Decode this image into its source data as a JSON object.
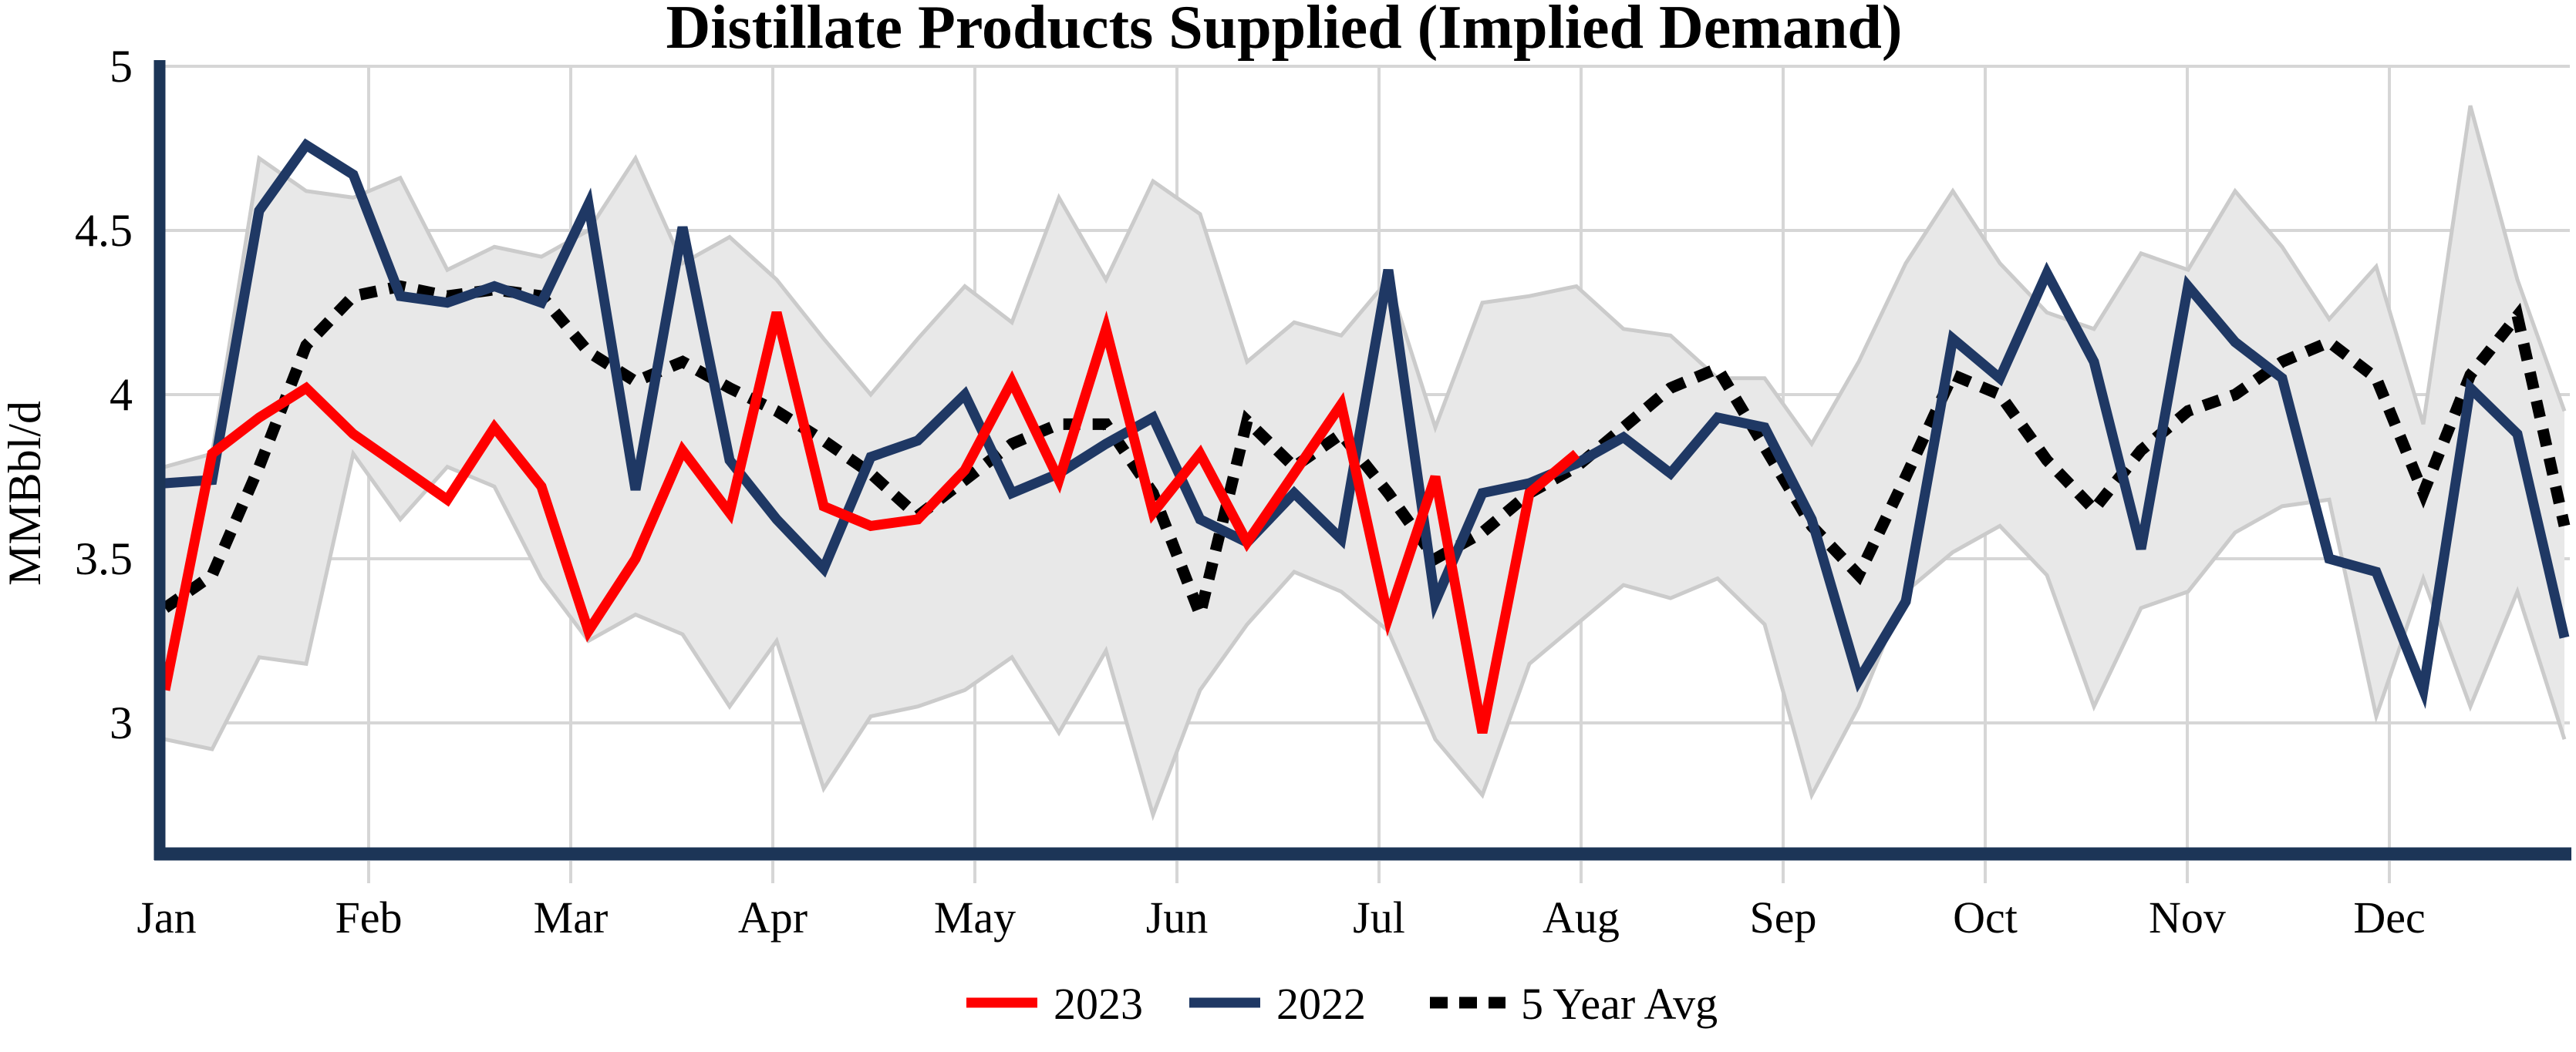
{
  "title": "Distillate Products Supplied (Implied Demand)",
  "y_axis": {
    "label": "MMBbl/d",
    "tick_labels": [
      "5",
      "4.5",
      "4",
      "3.5",
      "3"
    ],
    "tick_values": [
      5,
      4.5,
      4,
      3.5,
      3
    ]
  },
  "x_axis": {
    "month_labels": [
      "Jan",
      "Feb",
      "Mar",
      "Apr",
      "May",
      "Jun",
      "Jul",
      "Aug",
      "Sep",
      "Oct",
      "Nov",
      "Dec"
    ]
  },
  "legend": {
    "item_2023": "2023",
    "item_2022": "2022",
    "item_avg": "5 Year Avg"
  },
  "colors": {
    "red_2023": "#FF0000",
    "navy_2022": "#1F3864",
    "avg_dotted": "#000000",
    "band_fill": "#E8E8E8",
    "band_edge": "#CBCBCB",
    "gridline": "#D6D6D6",
    "axis": "#1C3557"
  },
  "chart_data": {
    "type": "line",
    "title": "Distillate Products Supplied (Implied Demand)",
    "ylabel": "MMBbl/d",
    "x_unit": "week_of_year",
    "weeks": 52,
    "ylim": [
      2.6,
      5.03
    ],
    "yticks": [
      3,
      3.5,
      4,
      4.5,
      5
    ],
    "grid": true,
    "legend_position": "bottom",
    "band": {
      "name": "5-year range",
      "upper": [
        3.78,
        3.82,
        4.72,
        4.62,
        4.6,
        4.66,
        4.38,
        4.45,
        4.42,
        4.5,
        4.72,
        4.4,
        4.48,
        4.35,
        4.17,
        4.0,
        4.17,
        4.33,
        4.22,
        4.6,
        4.35,
        4.65,
        4.55,
        4.1,
        4.22,
        4.18,
        4.35,
        3.9,
        4.28,
        4.3,
        4.33,
        4.2,
        4.18,
        4.05,
        4.05,
        3.85,
        4.1,
        4.4,
        4.62,
        4.4,
        4.25,
        4.2,
        4.43,
        4.38,
        4.62,
        4.45,
        4.23,
        4.39,
        3.91,
        4.88,
        4.35,
        3.95
      ],
      "lower": [
        2.95,
        2.92,
        3.2,
        3.18,
        3.82,
        3.62,
        3.78,
        3.72,
        3.44,
        3.25,
        3.33,
        3.27,
        3.05,
        3.25,
        2.8,
        3.02,
        3.05,
        3.1,
        3.2,
        2.97,
        3.22,
        2.72,
        3.1,
        3.3,
        3.46,
        3.4,
        3.28,
        2.95,
        2.78,
        3.18,
        3.3,
        3.42,
        3.38,
        3.44,
        3.3,
        2.78,
        3.05,
        3.4,
        3.52,
        3.6,
        3.45,
        3.05,
        3.35,
        3.4,
        3.58,
        3.66,
        3.68,
        3.02,
        3.44,
        3.05,
        3.4,
        2.95
      ]
    },
    "series": [
      {
        "name": "2023",
        "color": "#FF0000",
        "style": "solid",
        "values": [
          3.1,
          3.82,
          3.93,
          4.02,
          3.88,
          3.78,
          3.68,
          3.9,
          3.72,
          3.28,
          3.5,
          3.83,
          3.64,
          4.25,
          3.66,
          3.6,
          3.62,
          3.77,
          4.04,
          3.74,
          4.2,
          3.64,
          3.82,
          3.55,
          3.76,
          3.97,
          3.32,
          3.75,
          2.97,
          3.7,
          3.82
        ]
      },
      {
        "name": "2022",
        "color": "#1F3864",
        "style": "solid",
        "values": [
          3.73,
          3.74,
          4.56,
          4.76,
          4.67,
          4.3,
          4.28,
          4.33,
          4.28,
          4.58,
          3.71,
          4.51,
          3.8,
          3.62,
          3.47,
          3.81,
          3.86,
          4.0,
          3.7,
          3.76,
          3.85,
          3.93,
          3.62,
          3.55,
          3.7,
          3.56,
          4.38,
          3.37,
          3.7,
          3.73,
          3.79,
          3.87,
          3.76,
          3.93,
          3.9,
          3.62,
          3.13,
          3.37,
          4.17,
          4.05,
          4.37,
          4.1,
          3.53,
          4.33,
          4.16,
          4.05,
          3.5,
          3.46,
          3.1,
          4.02,
          3.88,
          3.26
        ]
      },
      {
        "name": "5 Year Avg",
        "color": "#000000",
        "style": "dotted",
        "values": [
          3.35,
          3.45,
          3.78,
          4.15,
          4.3,
          4.33,
          4.3,
          4.32,
          4.3,
          4.13,
          4.04,
          4.1,
          4.02,
          3.95,
          3.86,
          3.76,
          3.63,
          3.74,
          3.85,
          3.91,
          3.91,
          3.7,
          3.33,
          3.92,
          3.78,
          3.88,
          3.7,
          3.5,
          3.58,
          3.7,
          3.78,
          3.9,
          4.02,
          4.08,
          3.84,
          3.6,
          3.45,
          3.75,
          4.06,
          4.0,
          3.8,
          3.65,
          3.83,
          3.95,
          4.0,
          4.1,
          4.16,
          4.05,
          3.7,
          4.06,
          4.24,
          3.6
        ]
      }
    ]
  }
}
